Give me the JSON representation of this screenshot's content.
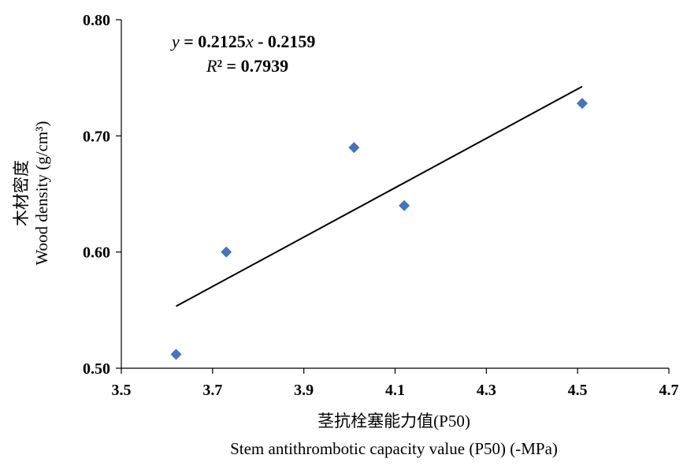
{
  "chart_data": {
    "type": "scatter",
    "x_ticks": [
      "3.5",
      "3.7",
      "3.9",
      "4.1",
      "4.3",
      "4.5",
      "4.7"
    ],
    "y_ticks": [
      "0.50",
      "0.60",
      "0.70",
      "0.80"
    ],
    "xlim": [
      3.5,
      4.7
    ],
    "ylim": [
      0.5,
      0.8
    ],
    "xlabel_cn": "茎抗栓塞能力值",
    "xlabel_cn_suffix": "(P50)",
    "xlabel_en": "Stem antithrombotic capacity value (P50) (-MPa)",
    "ylabel_cn": "木材密度",
    "ylabel_en": "Wood density (g/cm³)",
    "equation": {
      "y_var": "y",
      "slope_text": " = 0.2125",
      "x_var": "x",
      "intercept_text": " - 0.2159",
      "r2_var": "R",
      "r2_text": "² = 0.7939"
    },
    "trendline": {
      "slope": 0.2125,
      "intercept": -0.2159,
      "x_range": [
        3.62,
        4.51
      ]
    },
    "points": [
      {
        "x": 3.62,
        "y": 0.512
      },
      {
        "x": 3.73,
        "y": 0.6
      },
      {
        "x": 4.01,
        "y": 0.69
      },
      {
        "x": 4.12,
        "y": 0.64
      },
      {
        "x": 4.51,
        "y": 0.728
      }
    ],
    "marker_color": "#4472C4",
    "grid": false
  }
}
